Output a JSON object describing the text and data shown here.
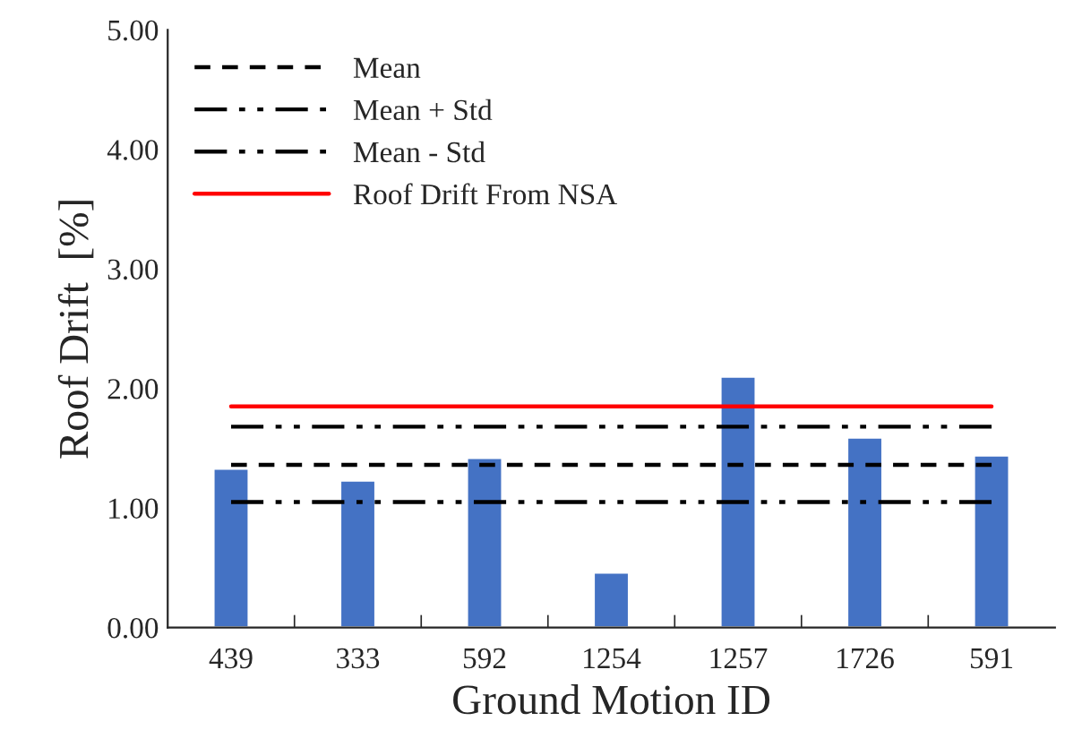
{
  "chart_data": {
    "type": "bar",
    "xlabel": "Ground Motion ID",
    "ylabel": "Roof Drift  [%]",
    "categories": [
      "439",
      "333",
      "592",
      "1254",
      "1257",
      "1726",
      "591"
    ],
    "series": [
      {
        "color": "#4472c4",
        "values": [
          1.33,
          1.23,
          1.42,
          0.46,
          2.1,
          1.59,
          1.44
        ]
      },
      {
        "type": "line",
        "name": "Mean",
        "color": "#000000",
        "line_style": "dashed",
        "values": [
          1.36,
          1.36,
          1.36,
          1.36,
          1.36,
          1.36,
          1.36
        ]
      },
      {
        "type": "line",
        "name": "Mean + Std",
        "color": "#000000",
        "line_style": "dashdotdot",
        "values": [
          1.68,
          1.68,
          1.68,
          1.68,
          1.68,
          1.68,
          1.68
        ]
      },
      {
        "type": "line",
        "name": "Mean - Std",
        "color": "#000000",
        "line_style": "dashdotdot",
        "values": [
          1.05,
          1.05,
          1.05,
          1.05,
          1.05,
          1.05,
          1.05
        ]
      },
      {
        "type": "line",
        "name": "Roof Drift From NSA",
        "color": "#ff0000",
        "line_style": "solid",
        "values": [
          1.85,
          1.85,
          1.85,
          1.85,
          1.85,
          1.85,
          1.85
        ]
      }
    ],
    "ylim": [
      0,
      5
    ],
    "yticks": [
      {
        "value": 0,
        "label": "0.00"
      },
      {
        "value": 1,
        "label": "1.00"
      },
      {
        "value": 2,
        "label": "2.00"
      },
      {
        "value": 3,
        "label": "3.00"
      },
      {
        "value": 4,
        "label": "4.00"
      },
      {
        "value": 5,
        "label": "5.00"
      }
    ],
    "grid": false,
    "legend": "top left"
  }
}
